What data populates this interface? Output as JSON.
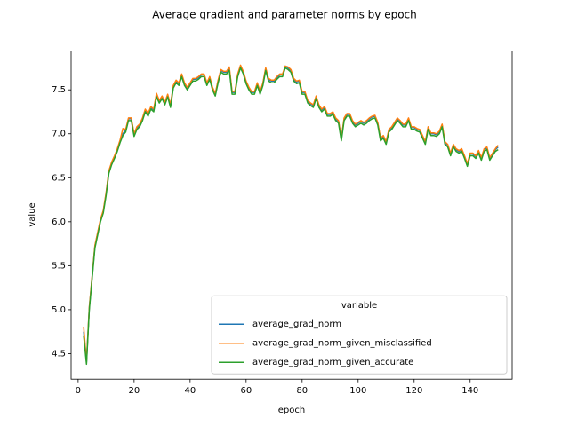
{
  "chart_data": {
    "type": "line",
    "title": "Average gradient and parameter norms by epoch",
    "x_label": "epoch",
    "y_label": "value",
    "legend_title": "variable",
    "legend": "lower right",
    "x": [
      2,
      3,
      4,
      5,
      6,
      7,
      8,
      9,
      10,
      11,
      12,
      13,
      14,
      15,
      16,
      17,
      18,
      19,
      20,
      21,
      22,
      23,
      24,
      25,
      26,
      27,
      28,
      29,
      30,
      31,
      32,
      33,
      34,
      35,
      36,
      37,
      38,
      39,
      40,
      41,
      42,
      43,
      44,
      45,
      46,
      47,
      48,
      49,
      50,
      51,
      52,
      53,
      54,
      55,
      56,
      57,
      58,
      59,
      60,
      61,
      62,
      63,
      64,
      65,
      66,
      67,
      68,
      69,
      70,
      71,
      72,
      73,
      74,
      75,
      76,
      77,
      78,
      79,
      80,
      81,
      82,
      83,
      84,
      85,
      86,
      87,
      88,
      89,
      90,
      91,
      92,
      93,
      94,
      95,
      96,
      97,
      98,
      99,
      100,
      101,
      102,
      103,
      104,
      105,
      106,
      107,
      108,
      109,
      110,
      111,
      112,
      113,
      114,
      115,
      116,
      117,
      118,
      119,
      120,
      121,
      122,
      123,
      124,
      125,
      126,
      127,
      128,
      129,
      130,
      131,
      132,
      133,
      134,
      135,
      136,
      137,
      138,
      139,
      140,
      141,
      142,
      143,
      144,
      145,
      146,
      147,
      148,
      149,
      150
    ],
    "series": [
      {
        "name": "average_grad_norm",
        "color": "#1f77b4",
        "values": [
          4.75,
          4.4,
          5.02,
          5.37,
          5.72,
          5.87,
          6.02,
          6.12,
          6.32,
          6.57,
          6.67,
          6.74,
          6.82,
          6.92,
          7.0,
          7.04,
          7.17,
          7.17,
          6.99,
          7.07,
          7.1,
          7.17,
          7.27,
          7.22,
          7.3,
          7.27,
          7.44,
          7.37,
          7.42,
          7.35,
          7.44,
          7.32,
          7.54,
          7.6,
          7.57,
          7.67,
          7.57,
          7.52,
          7.57,
          7.62,
          7.62,
          7.64,
          7.67,
          7.67,
          7.57,
          7.64,
          7.52,
          7.45,
          7.6,
          7.72,
          7.7,
          7.7,
          7.74,
          7.47,
          7.47,
          7.67,
          7.77,
          7.7,
          7.59,
          7.52,
          7.47,
          7.47,
          7.57,
          7.47,
          7.57,
          7.74,
          7.62,
          7.6,
          7.6,
          7.64,
          7.67,
          7.67,
          7.77,
          7.75,
          7.72,
          7.62,
          7.59,
          7.6,
          7.47,
          7.47,
          7.37,
          7.34,
          7.32,
          7.42,
          7.32,
          7.27,
          7.3,
          7.22,
          7.22,
          7.24,
          7.17,
          7.14,
          6.94,
          7.17,
          7.22,
          7.22,
          7.14,
          7.1,
          7.12,
          7.14,
          7.12,
          7.14,
          7.17,
          7.19,
          7.2,
          7.12,
          6.94,
          6.97,
          6.9,
          7.04,
          7.07,
          7.12,
          7.17,
          7.14,
          7.1,
          7.1,
          7.17,
          7.07,
          7.07,
          7.05,
          7.04,
          6.97,
          6.9,
          7.07,
          7.0,
          7.0,
          6.99,
          7.02,
          7.1,
          6.9,
          6.87,
          6.77,
          6.87,
          6.82,
          6.8,
          6.82,
          6.74,
          6.65,
          6.77,
          6.77,
          6.74,
          6.8,
          6.72,
          6.82,
          6.84,
          6.72,
          6.77,
          6.82,
          6.85
        ]
      },
      {
        "name": "average_grad_norm_given_misclassified",
        "color": "#ff7f0e",
        "values": [
          4.8,
          4.41,
          5.03,
          5.38,
          5.73,
          5.88,
          6.03,
          6.13,
          6.33,
          6.58,
          6.68,
          6.75,
          6.83,
          6.93,
          7.06,
          7.05,
          7.18,
          7.18,
          7.0,
          7.08,
          7.11,
          7.18,
          7.28,
          7.23,
          7.31,
          7.28,
          7.46,
          7.38,
          7.43,
          7.36,
          7.45,
          7.33,
          7.55,
          7.61,
          7.58,
          7.68,
          7.58,
          7.53,
          7.58,
          7.63,
          7.63,
          7.65,
          7.68,
          7.68,
          7.58,
          7.65,
          7.53,
          7.46,
          7.61,
          7.73,
          7.71,
          7.71,
          7.76,
          7.48,
          7.48,
          7.68,
          7.78,
          7.71,
          7.6,
          7.53,
          7.48,
          7.48,
          7.58,
          7.48,
          7.58,
          7.75,
          7.63,
          7.61,
          7.61,
          7.65,
          7.68,
          7.68,
          7.77,
          7.76,
          7.73,
          7.63,
          7.6,
          7.61,
          7.48,
          7.48,
          7.38,
          7.35,
          7.33,
          7.43,
          7.33,
          7.28,
          7.31,
          7.23,
          7.23,
          7.25,
          7.18,
          7.15,
          6.95,
          7.18,
          7.23,
          7.23,
          7.15,
          7.11,
          7.13,
          7.15,
          7.13,
          7.15,
          7.18,
          7.2,
          7.21,
          7.13,
          6.95,
          6.98,
          6.91,
          7.05,
          7.08,
          7.13,
          7.18,
          7.15,
          7.11,
          7.11,
          7.18,
          7.08,
          7.08,
          7.06,
          7.05,
          6.98,
          6.91,
          7.08,
          7.01,
          7.01,
          7.0,
          7.03,
          7.11,
          6.91,
          6.88,
          6.78,
          6.88,
          6.83,
          6.81,
          6.83,
          6.75,
          6.66,
          6.78,
          6.78,
          6.75,
          6.81,
          6.73,
          6.83,
          6.85,
          6.73,
          6.78,
          6.83,
          6.87
        ]
      },
      {
        "name": "average_grad_norm_given_accurate",
        "color": "#2ca02c",
        "values": [
          4.7,
          4.38,
          5.0,
          5.35,
          5.7,
          5.85,
          6.0,
          6.1,
          6.3,
          6.55,
          6.65,
          6.72,
          6.8,
          6.9,
          6.98,
          7.02,
          7.15,
          7.15,
          6.97,
          7.05,
          7.08,
          7.15,
          7.25,
          7.2,
          7.28,
          7.25,
          7.42,
          7.35,
          7.4,
          7.33,
          7.42,
          7.3,
          7.52,
          7.58,
          7.55,
          7.65,
          7.55,
          7.5,
          7.55,
          7.6,
          7.6,
          7.62,
          7.65,
          7.65,
          7.55,
          7.62,
          7.5,
          7.43,
          7.58,
          7.7,
          7.68,
          7.68,
          7.72,
          7.45,
          7.45,
          7.65,
          7.75,
          7.68,
          7.57,
          7.5,
          7.45,
          7.45,
          7.55,
          7.45,
          7.55,
          7.72,
          7.6,
          7.58,
          7.58,
          7.62,
          7.65,
          7.65,
          7.75,
          7.73,
          7.7,
          7.6,
          7.57,
          7.58,
          7.45,
          7.45,
          7.35,
          7.32,
          7.3,
          7.4,
          7.3,
          7.25,
          7.28,
          7.2,
          7.2,
          7.22,
          7.15,
          7.12,
          6.92,
          7.15,
          7.2,
          7.2,
          7.12,
          7.08,
          7.1,
          7.12,
          7.1,
          7.12,
          7.15,
          7.17,
          7.18,
          7.1,
          6.92,
          6.95,
          6.88,
          7.02,
          7.05,
          7.1,
          7.15,
          7.12,
          7.08,
          7.08,
          7.15,
          7.05,
          7.05,
          7.03,
          7.02,
          6.95,
          6.88,
          7.05,
          6.98,
          6.98,
          6.97,
          7.0,
          7.08,
          6.88,
          6.85,
          6.75,
          6.85,
          6.8,
          6.78,
          6.8,
          6.72,
          6.63,
          6.75,
          6.75,
          6.72,
          6.78,
          6.7,
          6.8,
          6.82,
          6.7,
          6.75,
          6.8,
          6.82
        ]
      }
    ],
    "xlim": [
      -2.5,
      155
    ],
    "xticks": [
      0,
      20,
      40,
      60,
      80,
      100,
      120,
      140
    ],
    "ylim": [
      4.21,
      7.94
    ],
    "yticks": [
      4.5,
      {
        "value": 5,
        "label": "5.0"
      },
      5.5,
      {
        "value": 6,
        "label": "6.0"
      },
      6.5,
      {
        "value": 7,
        "label": "7.0"
      },
      7.5
    ]
  }
}
